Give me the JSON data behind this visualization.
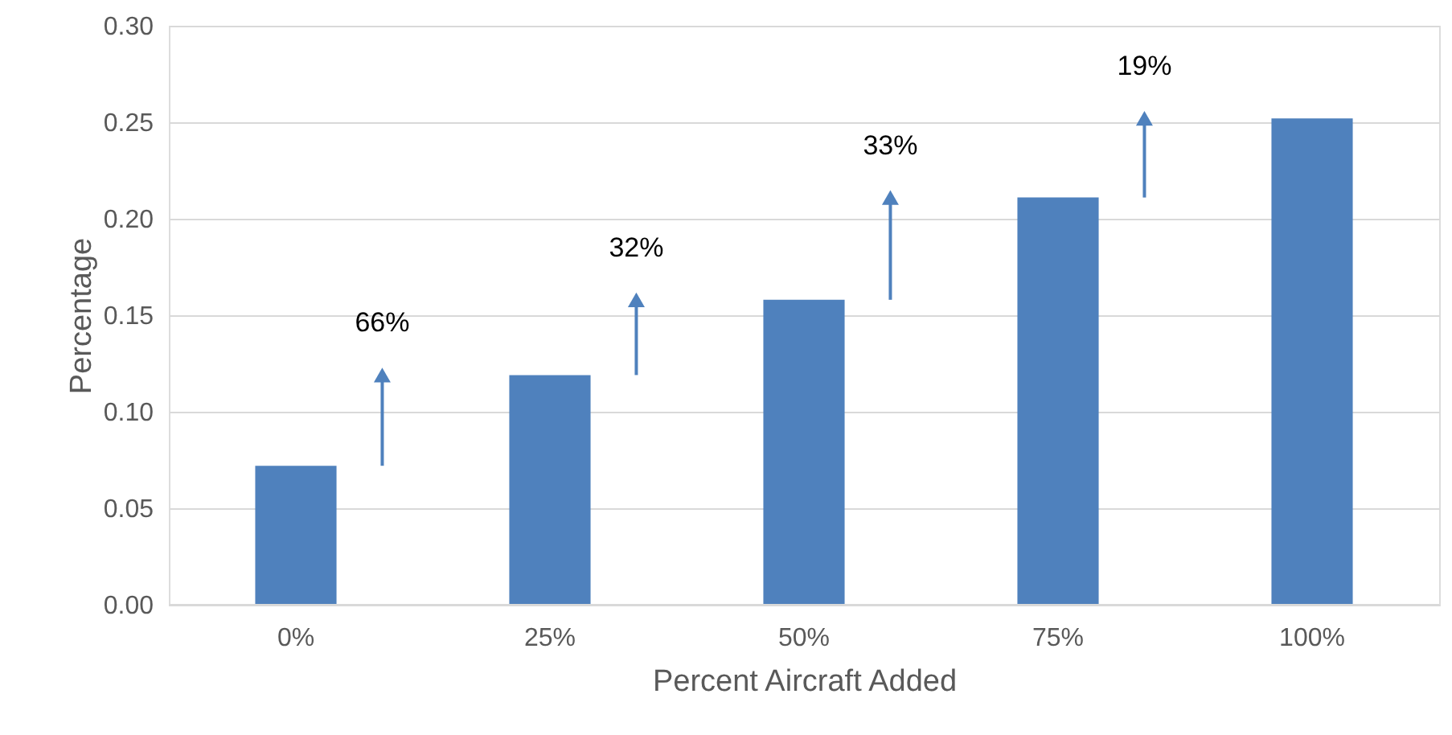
{
  "chart_data": {
    "type": "bar",
    "xlabel": "Percent Aircraft Added",
    "ylabel": "Percentage",
    "categories": [
      "0%",
      "25%",
      "50%",
      "75%",
      "100%"
    ],
    "values": [
      0.072,
      0.119,
      0.158,
      0.211,
      0.252
    ],
    "color": "#4f81bd",
    "ylim": [
      0,
      0.3
    ],
    "yticks": [
      {
        "value": 0,
        "label": "0.00"
      },
      {
        "value": 0.05,
        "label": "0.05"
      },
      {
        "value": 0.1,
        "label": "0.10"
      },
      {
        "value": 0.15,
        "label": "0.15"
      },
      {
        "value": 0.2,
        "label": "0.20"
      },
      {
        "value": 0.25,
        "label": "0.25"
      },
      {
        "value": 0.3,
        "label": "0.30"
      }
    ],
    "grid": "y",
    "legend": false,
    "annotations": [
      "66%",
      "32%",
      "33%",
      "19%"
    ]
  }
}
